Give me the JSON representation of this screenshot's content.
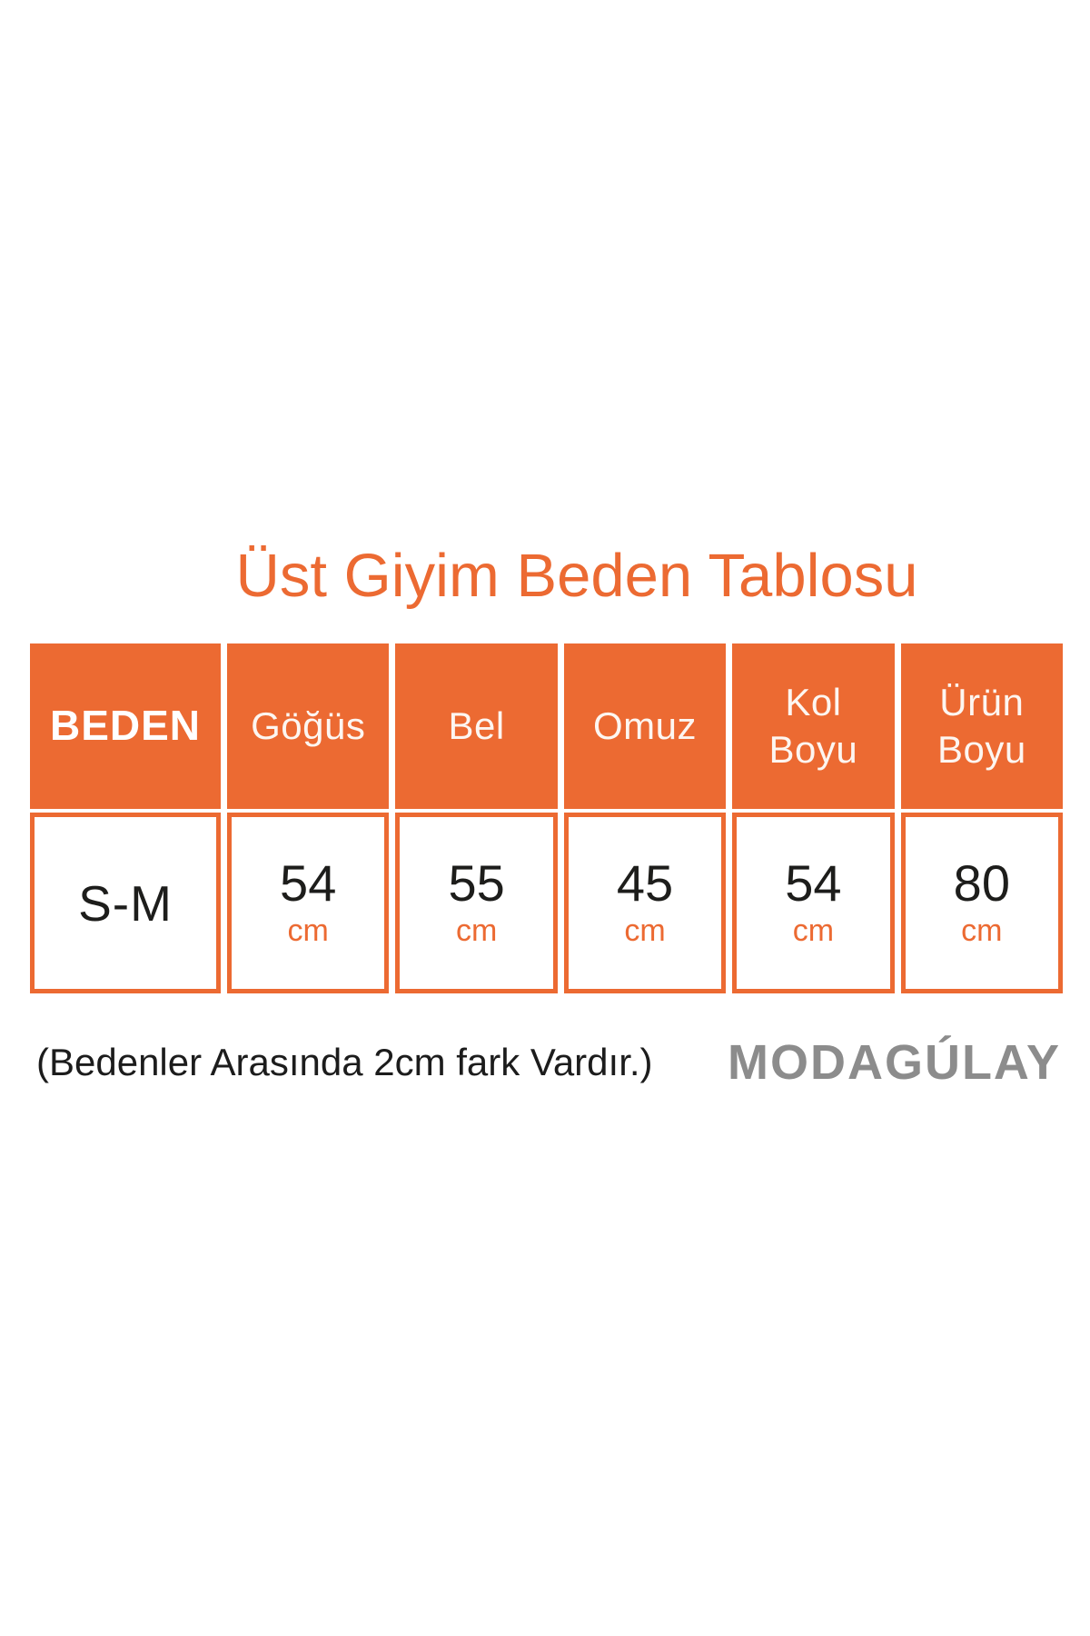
{
  "title": "Üst Giyim Beden Tablosu",
  "table": {
    "headers": [
      "BEDEN",
      "Göğüs",
      "Bel",
      "Omuz",
      "Kol\nBoyu",
      "Ürün\nBoyu"
    ],
    "row": {
      "beden": "S-M",
      "cells": [
        {
          "value": "54",
          "unit": "cm"
        },
        {
          "value": "55",
          "unit": "cm"
        },
        {
          "value": "45",
          "unit": "cm"
        },
        {
          "value": "54",
          "unit": "cm"
        },
        {
          "value": "80",
          "unit": "cm"
        }
      ]
    }
  },
  "footer": {
    "note": "(Bedenler Arasında 2cm fark Vardır.)",
    "brand": "MODAGÚLAY"
  },
  "colors": {
    "accent_orange": "#EC6A32",
    "brand_gray": "#8C8C8C",
    "text_black": "#1D1D1B"
  }
}
